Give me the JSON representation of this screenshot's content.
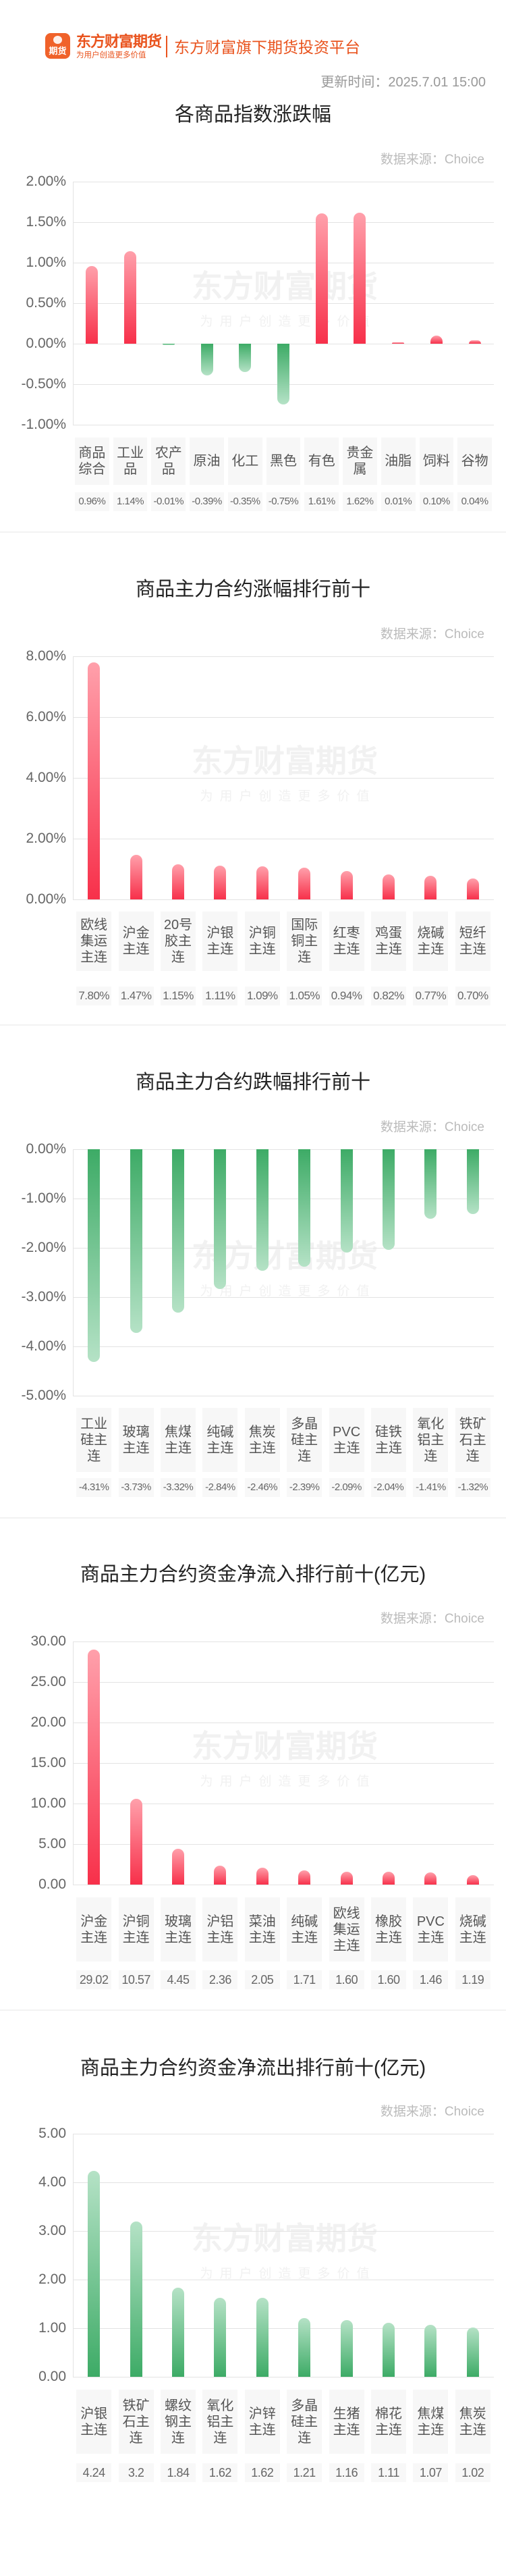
{
  "header": {
    "logo_text": "期货",
    "brand": "东方财富期货",
    "brand_slogan": "为用户创造更多价值",
    "tagline": "东方财富旗下期货投资平台",
    "update_label": "更新时间：",
    "update_time": "2025.7.01 15:00"
  },
  "watermark": {
    "text": "东方财富期货",
    "sub": "为用户创造更多价值"
  },
  "colors": {
    "brand": "#e9531d",
    "up": "#f7304a",
    "up_light": "#ffa0ab",
    "down": "#3dab66",
    "down_light": "#b5e2c6"
  },
  "chart_data": [
    {
      "type": "bar",
      "title": "各商品指数涨跌幅",
      "source": "数据来源：Choice",
      "ylim": [
        -1,
        2
      ],
      "yticks": [
        "2.00%",
        "1.50%",
        "1.00%",
        "0.50%",
        "0.00%",
        "-0.50%",
        "-1.00%"
      ],
      "grid": true,
      "categories": [
        "商品综合",
        "工业品",
        "农产品",
        "原油",
        "化工",
        "黑色",
        "有色",
        "贵金属",
        "油脂",
        "饲料",
        "谷物"
      ],
      "values": [
        0.96,
        1.14,
        -0.01,
        -0.39,
        -0.35,
        -0.75,
        1.61,
        1.62,
        0.01,
        0.1,
        0.04
      ],
      "value_labels": [
        "0.96%",
        "1.14%",
        "-0.01%",
        "-0.39%",
        "-0.35%",
        "-0.75%",
        "1.61%",
        "1.62%",
        "0.01%",
        "0.10%",
        "0.04%"
      ]
    },
    {
      "type": "bar",
      "title": "商品主力合约涨幅排行前十",
      "source": "数据来源：Choice",
      "ylim": [
        0,
        8
      ],
      "yticks": [
        "8.00%",
        "6.00%",
        "4.00%",
        "2.00%",
        "0.00%"
      ],
      "grid": true,
      "categories": [
        "欧线集运主连",
        "沪金主连",
        "20号胶主连",
        "沪银主连",
        "沪铜主连",
        "国际铜主连",
        "红枣主连",
        "鸡蛋主连",
        "烧碱主连",
        "短纤主连"
      ],
      "values": [
        7.8,
        1.47,
        1.15,
        1.11,
        1.09,
        1.05,
        0.94,
        0.82,
        0.77,
        0.7
      ],
      "value_labels": [
        "7.80%",
        "1.47%",
        "1.15%",
        "1.11%",
        "1.09%",
        "1.05%",
        "0.94%",
        "0.82%",
        "0.77%",
        "0.70%"
      ]
    },
    {
      "type": "bar",
      "title": "商品主力合约跌幅排行前十",
      "source": "数据来源：Choice",
      "ylim": [
        -5,
        0
      ],
      "yticks": [
        "0.00%",
        "-1.00%",
        "-2.00%",
        "-3.00%",
        "-4.00%",
        "-5.00%"
      ],
      "grid": true,
      "categories": [
        "工业硅主连",
        "玻璃主连",
        "焦煤主连",
        "纯碱主连",
        "焦炭主连",
        "多晶硅主连",
        "PVC主连",
        "硅铁主连",
        "氧化铝主连",
        "铁矿石主连"
      ],
      "values": [
        -4.31,
        -3.73,
        -3.32,
        -2.84,
        -2.46,
        -2.39,
        -2.09,
        -2.04,
        -1.41,
        -1.32
      ],
      "value_labels": [
        "-4.31%",
        "-3.73%",
        "-3.32%",
        "-2.84%",
        "-2.46%",
        "-2.39%",
        "-2.09%",
        "-2.04%",
        "-1.41%",
        "-1.32%"
      ]
    },
    {
      "type": "bar",
      "title": "商品主力合约资金净流入排行前十(亿元)",
      "source": "数据来源：Choice",
      "ylim": [
        0,
        30
      ],
      "yticks": [
        "30.00",
        "25.00",
        "20.00",
        "15.00",
        "10.00",
        "5.00",
        "0.00"
      ],
      "grid": true,
      "categories": [
        "沪金主连",
        "沪铜主连",
        "玻璃主连",
        "沪铝主连",
        "菜油主连",
        "纯碱主连",
        "欧线集运主连",
        "橡胶主连",
        "PVC主连",
        "烧碱主连"
      ],
      "values": [
        29.02,
        10.57,
        4.45,
        2.36,
        2.05,
        1.71,
        1.6,
        1.6,
        1.46,
        1.19
      ],
      "value_labels": [
        "29.02",
        "10.57",
        "4.45",
        "2.36",
        "2.05",
        "1.71",
        "1.60",
        "1.60",
        "1.46",
        "1.19"
      ],
      "bar_color": "up"
    },
    {
      "type": "bar",
      "title": "商品主力合约资金净流出排行前十(亿元)",
      "source": "数据来源：Choice",
      "ylim": [
        0,
        5
      ],
      "yticks": [
        "5.00",
        "4.00",
        "3.00",
        "2.00",
        "1.00",
        "0.00"
      ],
      "grid": true,
      "categories": [
        "沪银主连",
        "铁矿石主连",
        "螺纹钢主连",
        "氧化铝主连",
        "沪锌主连",
        "多晶硅主连",
        "生猪主连",
        "棉花主连",
        "焦煤主连",
        "焦炭主连"
      ],
      "values": [
        4.24,
        3.2,
        1.84,
        1.62,
        1.62,
        1.21,
        1.16,
        1.11,
        1.07,
        1.02
      ],
      "value_labels": [
        "4.24",
        "3.2",
        "1.84",
        "1.62",
        "1.62",
        "1.21",
        "1.16",
        "1.11",
        "1.07",
        "1.02"
      ],
      "bar_color": "down"
    }
  ]
}
